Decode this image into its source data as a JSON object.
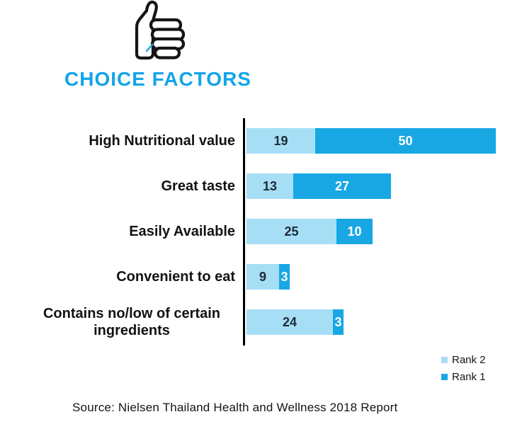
{
  "header": {
    "title": "CHOICE FACTORS",
    "icon": "thumbs-up-icon"
  },
  "chart_data": {
    "type": "bar",
    "orientation": "horizontal",
    "stacked": true,
    "title": "CHOICE FACTORS",
    "categories": [
      "High Nutritional value",
      "Great taste",
      "Easily Available",
      "Convenient to eat",
      "Contains no/low of certain ingredients"
    ],
    "series": [
      {
        "name": "Rank 2",
        "color": "#a6def5",
        "values": [
          19,
          13,
          25,
          9,
          24
        ]
      },
      {
        "name": "Rank 1",
        "color": "#18a7e3",
        "values": [
          50,
          27,
          10,
          3,
          3
        ]
      }
    ],
    "value_labels": "inside segments",
    "legend_position": "bottom-right",
    "xlim": [
      0,
      70
    ],
    "grid": false,
    "axis": "single vertical baseline at left of bars"
  },
  "legend": {
    "rank2_label": "Rank 2",
    "rank1_label": "Rank 1"
  },
  "footer": {
    "source": "Source: Nielsen Thailand Health and Wellness 2018 Report"
  },
  "colors": {
    "title": "#14a4e8",
    "rank2": "#a6def5",
    "rank1": "#18a7e3",
    "axis": "#000000",
    "value_on_light": "#1c2b36",
    "value_on_dark": "#ffffff"
  }
}
